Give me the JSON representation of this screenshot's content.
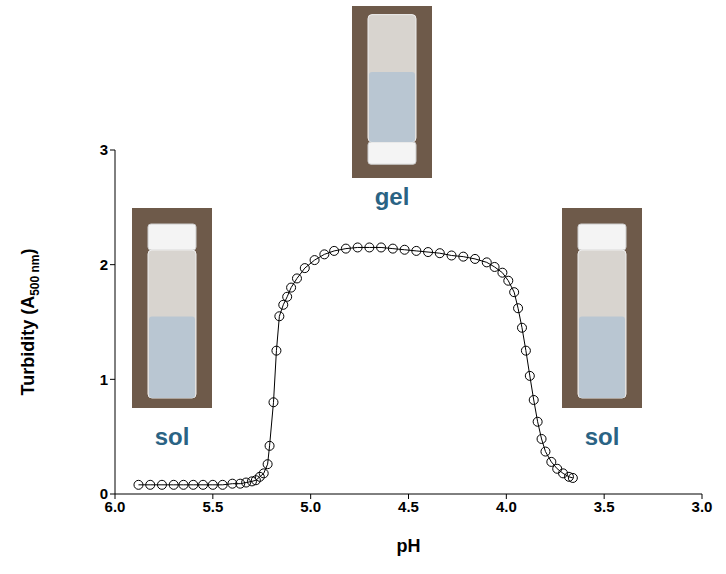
{
  "chart_data": {
    "type": "scatter",
    "x_label": "pH",
    "y_label": "Turbidity (A500 nm)",
    "xlim": [
      6.0,
      3.0
    ],
    "xticks": [
      {
        "value": 6.0,
        "label": "6.0"
      },
      5.5,
      {
        "value": 5.0,
        "label": "5.0"
      },
      4.5,
      {
        "value": 4.0,
        "label": "4.0"
      },
      3.5,
      {
        "value": 3.0,
        "label": "3.0"
      }
    ],
    "ylim": [
      0,
      3
    ],
    "yticks": [
      0,
      1,
      2,
      3
    ],
    "grid": false,
    "color": "#000000",
    "marker": "o",
    "line_style": "solid",
    "annotations": [
      "sol",
      "gel",
      "sol"
    ],
    "x": [
      5.88,
      5.82,
      5.76,
      5.7,
      5.65,
      5.6,
      5.55,
      5.5,
      5.45,
      5.4,
      5.36,
      5.33,
      5.3,
      5.28,
      5.26,
      5.24,
      5.22,
      5.21,
      5.19,
      5.175,
      5.16,
      5.14,
      5.12,
      5.1,
      5.07,
      5.03,
      4.98,
      4.93,
      4.88,
      4.82,
      4.76,
      4.7,
      4.64,
      4.58,
      4.52,
      4.46,
      4.4,
      4.34,
      4.28,
      4.22,
      4.16,
      4.1,
      4.06,
      4.02,
      3.99,
      3.96,
      3.94,
      3.92,
      3.9,
      3.88,
      3.86,
      3.84,
      3.82,
      3.8,
      3.77,
      3.74,
      3.71,
      3.68,
      3.66
    ],
    "values": [
      0.08,
      0.08,
      0.08,
      0.08,
      0.08,
      0.08,
      0.08,
      0.08,
      0.08,
      0.09,
      0.09,
      0.1,
      0.11,
      0.12,
      0.15,
      0.18,
      0.26,
      0.42,
      0.8,
      1.25,
      1.55,
      1.65,
      1.72,
      1.8,
      1.88,
      1.97,
      2.04,
      2.09,
      2.12,
      2.14,
      2.15,
      2.15,
      2.15,
      2.14,
      2.13,
      2.12,
      2.11,
      2.1,
      2.08,
      2.07,
      2.05,
      2.02,
      1.98,
      1.93,
      1.86,
      1.76,
      1.62,
      1.45,
      1.25,
      1.03,
      0.82,
      0.63,
      0.48,
      0.37,
      0.28,
      0.22,
      0.18,
      0.15,
      0.14
    ]
  }
}
